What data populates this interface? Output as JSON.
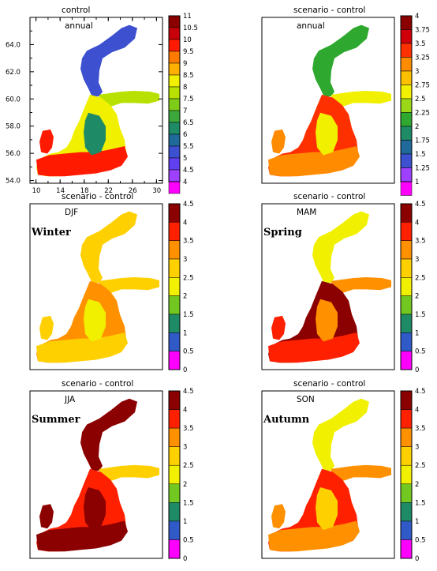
{
  "chart_data": [
    {
      "type": "heatmap",
      "title": "control",
      "subtitle": "annual",
      "season": "",
      "x_ticks": [
        "10",
        "14",
        "18",
        "22",
        "26",
        "30"
      ],
      "y_ticks": [
        "54.0",
        "56.0",
        "58.0",
        "60.0",
        "62.0",
        "64.0"
      ],
      "xlim": [
        9,
        31
      ],
      "ylim": [
        53.8,
        66.0
      ],
      "colorbar": {
        "labels": [
          "11",
          "10.5",
          "10",
          "9.5",
          "9",
          "8.5",
          "8",
          "7.5",
          "7",
          "6.5",
          "6",
          "5.5",
          "5",
          "4.5",
          "4"
        ],
        "colors": [
          "#8b0000",
          "#c8000a",
          "#ff1a00",
          "#ff7a00",
          "#ffb000",
          "#f0f000",
          "#b8e000",
          "#7fcc18",
          "#3ca83c",
          "#1f8a66",
          "#1f6a9a",
          "#3c50d0",
          "#6040f0",
          "#a040ff",
          "#ff00ff"
        ]
      },
      "regions": [
        {
          "part": "bothnian-bay",
          "value": "5"
        },
        {
          "part": "bothnian-sea",
          "value": "6"
        },
        {
          "part": "gulf-of-finland",
          "value": "7.5"
        },
        {
          "part": "baltic-proper",
          "value": "8"
        },
        {
          "part": "southern-baltic",
          "value": "9.5"
        }
      ]
    },
    {
      "type": "heatmap",
      "title": "scenario - control",
      "subtitle": "annual",
      "season": "",
      "colorbar": {
        "labels": [
          "4",
          "3.75",
          "3.5",
          "3.25",
          "3",
          "2.75",
          "2.5",
          "2.25",
          "2",
          "1.75",
          "1.5",
          "1.25",
          "1"
        ],
        "colors": [
          "#8b0000",
          "#d0000a",
          "#ff3000",
          "#ff8c00",
          "#ffc000",
          "#f0f000",
          "#9ad818",
          "#2ea82e",
          "#1f8a66",
          "#1f6a9a",
          "#3c50d0",
          "#a040ff",
          "#ff00ff"
        ]
      },
      "regions": [
        {
          "part": "bothnian-bay",
          "value": "2"
        },
        {
          "part": "bothnian-sea",
          "value": "2.5"
        },
        {
          "part": "gulf-of-finland",
          "value": "2.5"
        },
        {
          "part": "baltic-proper",
          "value": "3.25"
        },
        {
          "part": "southern-baltic",
          "value": "3"
        }
      ]
    },
    {
      "type": "heatmap",
      "title": "scenario - control",
      "subtitle": "DJF",
      "season": "Winter",
      "colorbar": {
        "labels": [
          "4.5",
          "4",
          "3.5",
          "3",
          "2.5",
          "2",
          "1.5",
          "1",
          "0.5",
          "0"
        ],
        "colors": [
          "#8b0000",
          "#ff2000",
          "#ff9000",
          "#ffd000",
          "#f0f000",
          "#72c820",
          "#1f8a66",
          "#2f5ac8",
          "#ff00ff"
        ]
      },
      "regions": [
        {
          "part": "bothnian-bay",
          "value": "2.5"
        },
        {
          "part": "bothnian-sea",
          "value": "2"
        },
        {
          "part": "gulf-of-finland",
          "value": "2.5"
        },
        {
          "part": "baltic-proper",
          "value": "3"
        },
        {
          "part": "southern-baltic",
          "value": "2.5"
        }
      ]
    },
    {
      "type": "heatmap",
      "title": "scenario - control",
      "subtitle": "MAM",
      "season": "Spring",
      "colorbar": {
        "labels": [
          "4.5",
          "4",
          "3.5",
          "3",
          "2.5",
          "2",
          "1.5",
          "1",
          "0.5",
          "0"
        ],
        "colors": [
          "#8b0000",
          "#ff2000",
          "#ff9000",
          "#ffd000",
          "#f0f000",
          "#72c820",
          "#1f8a66",
          "#2f5ac8",
          "#ff00ff"
        ]
      },
      "regions": [
        {
          "part": "bothnian-bay",
          "value": "2"
        },
        {
          "part": "bothnian-sea",
          "value": "3"
        },
        {
          "part": "gulf-of-finland",
          "value": "3"
        },
        {
          "part": "baltic-proper",
          "value": "4"
        },
        {
          "part": "southern-baltic",
          "value": "3.5"
        }
      ]
    },
    {
      "type": "heatmap",
      "title": "scenario - control",
      "subtitle": "JJA",
      "season": "Summer",
      "colorbar": {
        "labels": [
          "4.5",
          "4",
          "3.5",
          "3",
          "2.5",
          "2",
          "1.5",
          "1",
          "0.5",
          "0"
        ],
        "colors": [
          "#8b0000",
          "#ff2000",
          "#ff9000",
          "#ffd000",
          "#f0f000",
          "#72c820",
          "#1f8a66",
          "#2f5ac8",
          "#ff00ff"
        ]
      },
      "regions": [
        {
          "part": "bothnian-bay",
          "value": "4"
        },
        {
          "part": "bothnian-sea",
          "value": "4.5"
        },
        {
          "part": "gulf-of-finland",
          "value": "2.5"
        },
        {
          "part": "baltic-proper",
          "value": "3.5"
        },
        {
          "part": "southern-baltic",
          "value": "4"
        }
      ]
    },
    {
      "type": "heatmap",
      "title": "scenario - control",
      "subtitle": "SON",
      "season": "Autumn",
      "colorbar": {
        "labels": [
          "4.5",
          "4",
          "3.5",
          "3",
          "2.5",
          "2",
          "1.5",
          "1",
          "0.5",
          "0"
        ],
        "colors": [
          "#8b0000",
          "#ff2000",
          "#ff9000",
          "#ffd000",
          "#f0f000",
          "#72c820",
          "#1f8a66",
          "#2f5ac8",
          "#ff00ff"
        ]
      },
      "regions": [
        {
          "part": "bothnian-bay",
          "value": "2"
        },
        {
          "part": "bothnian-sea",
          "value": "2.5"
        },
        {
          "part": "gulf-of-finland",
          "value": "3"
        },
        {
          "part": "baltic-proper",
          "value": "3.5"
        },
        {
          "part": "southern-baltic",
          "value": "3"
        }
      ]
    }
  ]
}
